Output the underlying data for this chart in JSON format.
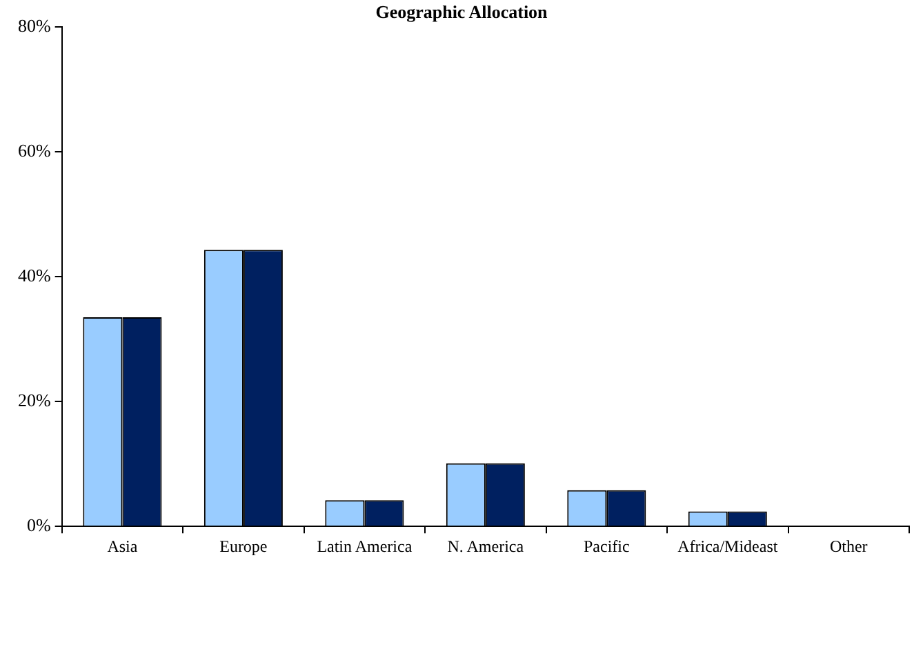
{
  "chart_data": {
    "type": "bar",
    "title": "Geographic Allocation",
    "categories": [
      "Asia",
      "Europe",
      "Latin America",
      "N. America",
      "Pacific",
      "Africa/Mideast",
      "Other"
    ],
    "series": [
      {
        "color": "#99ccff",
        "values": [
          33.5,
          44.3,
          4.2,
          10.1,
          5.8,
          2.4,
          0
        ]
      },
      {
        "color": "#002060",
        "values": [
          33.5,
          44.3,
          4.2,
          10.1,
          5.8,
          2.4,
          0
        ]
      }
    ],
    "ylim": [
      0,
      80
    ],
    "yticks": [
      {
        "value": 0,
        "label": "0%"
      },
      {
        "value": 20,
        "label": "20%"
      },
      {
        "value": 40,
        "label": "40%"
      },
      {
        "value": 60,
        "label": "60%"
      },
      {
        "value": 80,
        "label": "80%"
      }
    ],
    "grid": false,
    "legend": false
  }
}
